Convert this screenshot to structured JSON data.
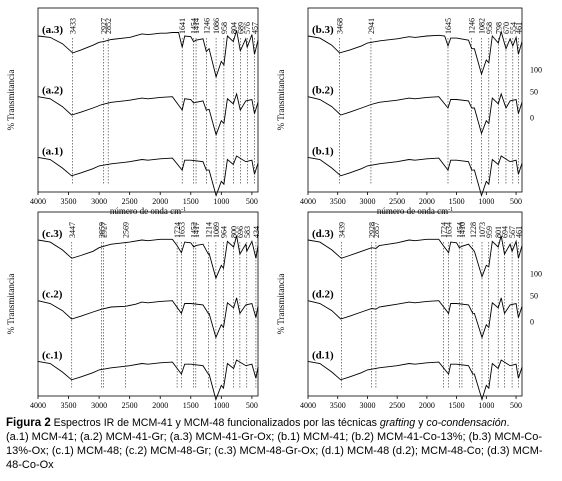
{
  "caption": {
    "figure_label": "Figura 2",
    "text_before": " Espectros IR de MCM-41 y MCM-48 funcionalizados por las técnicas ",
    "em1": "grafting",
    "text_mid": " y ",
    "em2": "co-condensación",
    "text_after": ".",
    "legend_text": "(a.1) MCM-41; (a.2) MCM-41-Gr; (a.3) MCM-41-Gr-Ox; (b.1) MCM-41; (b.2) MCM-41-Co-13%; (b.3) MCM-Co-13%-Ox; (c.1) MCM-48; (c.2) MCM-48-Gr; (c.3) MCM-48-Gr-Ox; (d.1) MCM-48 (d.2); MCM-48-Co; (d.3) MCM-48-Co-Ox"
  },
  "chart_data": [
    {
      "type": "line",
      "panel": "a",
      "xlabel": "número de onda cm",
      "xlabel_superscript": "-1",
      "ylabel": "% Transmitancia",
      "xlim": [
        4000,
        400
      ],
      "x_ticks": [
        "4000",
        "3500",
        "3000",
        "2500",
        "2000",
        "1500",
        "1000",
        "500"
      ],
      "y_ticks": [],
      "series": [
        {
          "name": "(a.3)",
          "trace_color": "#000000",
          "x": [
            4000,
            3800,
            3600,
            3433,
            3300,
            3100,
            3000,
            2927,
            2800,
            2500,
            2300,
            2200,
            2100,
            2000,
            1900,
            1800,
            1700,
            1641,
            1600,
            1500,
            1454,
            1414,
            1300,
            1246,
            1200,
            1086,
            1000,
            958,
            900,
            804,
            750,
            689,
            600,
            576,
            500,
            457,
            400
          ],
          "y": [
            66,
            64,
            55,
            42,
            46,
            53,
            57,
            58,
            61,
            64,
            69,
            68,
            69,
            70,
            70,
            71,
            71,
            50,
            66,
            65,
            58,
            60,
            62,
            44,
            48,
            8,
            30,
            25,
            66,
            58,
            74,
            45,
            62,
            50,
            68,
            40,
            60
          ]
        },
        {
          "name": "(a.2)",
          "trace_color": "#000000",
          "x": [
            4000,
            3800,
            3600,
            3450,
            3300,
            3100,
            2952,
            2800,
            2500,
            2300,
            2200,
            2000,
            1800,
            1641,
            1600,
            1500,
            1454,
            1414,
            1300,
            1246,
            1200,
            1086,
            1000,
            958,
            900,
            804,
            750,
            689,
            600,
            500,
            457,
            400
          ],
          "y": [
            66,
            63,
            52,
            40,
            44,
            50,
            55,
            58,
            61,
            64,
            63,
            65,
            66,
            47,
            63,
            62,
            57,
            58,
            60,
            47,
            48,
            12,
            32,
            28,
            63,
            56,
            70,
            47,
            60,
            62,
            42,
            58
          ]
        },
        {
          "name": "(a.1)",
          "trace_color": "#000000",
          "x": [
            4000,
            3800,
            3600,
            3450,
            3300,
            3100,
            3000,
            2800,
            2500,
            2300,
            2200,
            2000,
            1800,
            1641,
            1600,
            1500,
            1300,
            1246,
            1200,
            1086,
            1000,
            958,
            900,
            804,
            750,
            600,
            500,
            457,
            400
          ],
          "y": [
            66,
            63,
            51,
            40,
            44,
            50,
            54,
            57,
            60,
            63,
            62,
            64,
            65,
            48,
            62,
            62,
            60,
            48,
            48,
            12,
            32,
            28,
            63,
            56,
            68,
            60,
            62,
            42,
            58
          ]
        }
      ],
      "annotations": [
        "3433",
        "2927",
        "2852",
        "1641",
        "1454",
        "1414",
        "1246",
        "1086",
        "958",
        "804",
        "689",
        "576",
        "457"
      ]
    },
    {
      "type": "line",
      "panel": "b",
      "xlabel": "número de onda cm",
      "xlabel_superscript": "-1",
      "ylabel": "% Transmitancia",
      "xlim": [
        4000,
        400
      ],
      "x_ticks": [
        "4000",
        "3500",
        "3000",
        "2500",
        "2000",
        "1500",
        "1000",
        "500"
      ],
      "y_ticks": [
        "100",
        "50",
        "0"
      ],
      "series": [
        {
          "name": "(b.3)",
          "trace_color": "#000000",
          "x": [
            4000,
            3800,
            3600,
            3468,
            3300,
            3100,
            3000,
            2800,
            2500,
            2300,
            2200,
            2000,
            1800,
            1700,
            1645,
            1600,
            1500,
            1300,
            1246,
            1200,
            1082,
            1000,
            958,
            900,
            798,
            750,
            670,
            600,
            554,
            500,
            461,
            400
          ],
          "y": [
            66,
            63,
            53,
            42,
            46,
            52,
            56,
            59,
            62,
            65,
            64,
            66,
            67,
            66,
            52,
            63,
            63,
            60,
            48,
            48,
            12,
            32,
            28,
            66,
            56,
            72,
            48,
            62,
            52,
            64,
            40,
            58
          ]
        },
        {
          "name": "(b.2)",
          "trace_color": "#000000",
          "x": [
            4000,
            3800,
            3600,
            3450,
            3300,
            3100,
            2941,
            2800,
            2500,
            2300,
            2200,
            2000,
            1800,
            1645,
            1600,
            1500,
            1300,
            1246,
            1200,
            1082,
            1000,
            958,
            900,
            798,
            750,
            670,
            600,
            500,
            461,
            400
          ],
          "y": [
            66,
            62,
            52,
            40,
            44,
            50,
            55,
            58,
            61,
            64,
            63,
            65,
            66,
            50,
            62,
            62,
            60,
            50,
            50,
            14,
            32,
            28,
            64,
            56,
            70,
            50,
            60,
            62,
            42,
            58
          ]
        },
        {
          "name": "(b.1)",
          "trace_color": "#000000",
          "x": [
            4000,
            3800,
            3600,
            3450,
            3300,
            3100,
            3000,
            2800,
            2500,
            2300,
            2200,
            2000,
            1800,
            1645,
            1600,
            1500,
            1300,
            1246,
            1200,
            1082,
            1000,
            958,
            900,
            798,
            750,
            600,
            500,
            461,
            400
          ],
          "y": [
            66,
            63,
            51,
            40,
            44,
            50,
            54,
            57,
            60,
            63,
            62,
            64,
            65,
            48,
            62,
            62,
            60,
            48,
            48,
            12,
            32,
            28,
            63,
            56,
            68,
            60,
            62,
            42,
            58
          ]
        }
      ],
      "annotations": [
        "3468",
        "2941",
        "1645",
        "1246",
        "1082",
        "958",
        "798",
        "670",
        "554",
        "461"
      ]
    },
    {
      "type": "line",
      "panel": "c",
      "xlabel": "número de onda cm",
      "xlabel_superscript": "-1",
      "ylabel": "% Transmitancia",
      "xlim": [
        4000,
        400
      ],
      "x_ticks": [
        "4000",
        "3500",
        "3000",
        "2500",
        "2000",
        "1500",
        "1000",
        "500"
      ],
      "y_ticks": [],
      "series": [
        {
          "name": "(c.3)",
          "trace_color": "#000000",
          "x": [
            4000,
            3800,
            3600,
            3447,
            3300,
            3100,
            3000,
            2927,
            2800,
            2500,
            2300,
            2200,
            2000,
            1800,
            1724,
            1653,
            1600,
            1500,
            1452,
            1417,
            1300,
            1214,
            1200,
            1089,
            1000,
            964,
            900,
            800,
            750,
            696,
            600,
            583,
            500,
            434,
            400
          ],
          "y": [
            66,
            63,
            52,
            40,
            44,
            50,
            55,
            57,
            60,
            63,
            66,
            65,
            67,
            67,
            58,
            48,
            63,
            62,
            56,
            58,
            60,
            46,
            47,
            12,
            30,
            26,
            64,
            56,
            72,
            46,
            60,
            50,
            64,
            40,
            58
          ]
        },
        {
          "name": "(c.2)",
          "trace_color": "#000000",
          "x": [
            4000,
            3800,
            3600,
            3450,
            3300,
            3100,
            2959,
            2800,
            2569,
            2400,
            2300,
            2200,
            2000,
            1800,
            1653,
            1600,
            1500,
            1300,
            1214,
            1200,
            1089,
            1000,
            964,
            900,
            800,
            750,
            696,
            600,
            500,
            434,
            400
          ],
          "y": [
            66,
            62,
            52,
            40,
            44,
            50,
            54,
            57,
            58,
            61,
            64,
            63,
            65,
            66,
            48,
            62,
            62,
            60,
            48,
            48,
            14,
            32,
            28,
            63,
            56,
            70,
            48,
            60,
            62,
            42,
            58
          ]
        },
        {
          "name": "(c.1)",
          "trace_color": "#000000",
          "x": [
            4000,
            3800,
            3600,
            3450,
            3300,
            3100,
            3000,
            2800,
            2500,
            2300,
            2200,
            2000,
            1800,
            1653,
            1600,
            1500,
            1300,
            1214,
            1200,
            1089,
            1000,
            964,
            900,
            800,
            750,
            600,
            500,
            434,
            400
          ],
          "y": [
            66,
            63,
            51,
            40,
            44,
            50,
            54,
            57,
            60,
            63,
            62,
            64,
            65,
            48,
            62,
            62,
            60,
            48,
            48,
            12,
            32,
            28,
            63,
            56,
            68,
            60,
            62,
            42,
            58
          ]
        }
      ],
      "annotations": [
        "3447",
        "2927",
        "2959",
        "2569",
        "1724",
        "1653",
        "1452",
        "1417",
        "1214",
        "1089",
        "964",
        "800",
        "696",
        "583",
        "434"
      ]
    },
    {
      "type": "line",
      "panel": "d",
      "xlabel": "número de onda cm",
      "xlabel_superscript": "-1",
      "ylabel": "% Transmitancia",
      "xlim": [
        4000,
        400
      ],
      "x_ticks": [
        "4000",
        "3500",
        "3000",
        "2500",
        "2000",
        "1500",
        "1000",
        "500"
      ],
      "y_ticks": [
        "100",
        "50",
        "0"
      ],
      "series": [
        {
          "name": "(d.3)",
          "trace_color": "#000000",
          "x": [
            4000,
            3800,
            3600,
            3439,
            3300,
            3100,
            2928,
            2857,
            2800,
            2500,
            2300,
            2200,
            2000,
            1800,
            1724,
            1634,
            1600,
            1500,
            1454,
            1410,
            1300,
            1200,
            1073,
            1000,
            959,
            900,
            801,
            750,
            694,
            600,
            567,
            500,
            461,
            400
          ],
          "y": [
            66,
            63,
            52,
            40,
            44,
            50,
            55,
            54,
            58,
            62,
            66,
            65,
            67,
            67,
            58,
            48,
            63,
            62,
            55,
            57,
            60,
            50,
            14,
            30,
            28,
            64,
            56,
            72,
            46,
            60,
            50,
            64,
            40,
            58
          ]
        },
        {
          "name": "(d.2)",
          "trace_color": "#000000",
          "x": [
            4000,
            3800,
            3600,
            3450,
            3300,
            3100,
            2928,
            2857,
            2800,
            2500,
            2300,
            2200,
            2000,
            1800,
            1634,
            1600,
            1500,
            1300,
            1228,
            1200,
            1073,
            1000,
            959,
            900,
            801,
            750,
            694,
            600,
            500,
            461,
            400
          ],
          "y": [
            66,
            62,
            52,
            40,
            44,
            50,
            55,
            54,
            57,
            61,
            64,
            63,
            65,
            66,
            48,
            62,
            62,
            60,
            48,
            48,
            14,
            32,
            28,
            63,
            56,
            70,
            48,
            60,
            62,
            42,
            58
          ]
        },
        {
          "name": "(d.1)",
          "trace_color": "#000000",
          "x": [
            4000,
            3800,
            3600,
            3450,
            3300,
            3100,
            3000,
            2800,
            2500,
            2300,
            2200,
            2000,
            1800,
            1634,
            1600,
            1500,
            1300,
            1228,
            1200,
            1073,
            1000,
            959,
            900,
            801,
            750,
            600,
            500,
            461,
            400
          ],
          "y": [
            66,
            63,
            51,
            40,
            44,
            50,
            54,
            57,
            60,
            63,
            62,
            64,
            65,
            48,
            62,
            62,
            60,
            48,
            48,
            12,
            32,
            28,
            63,
            56,
            68,
            60,
            62,
            42,
            58
          ]
        }
      ],
      "annotations": [
        "3439",
        "2928",
        "2857",
        "1724",
        "1634",
        "1454",
        "1410",
        "1228",
        "1073",
        "959",
        "801",
        "694",
        "567",
        "461"
      ]
    }
  ]
}
